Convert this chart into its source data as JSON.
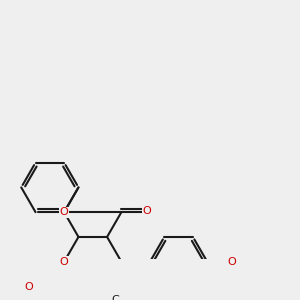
{
  "bg_color": "#efefef",
  "bond_color": "#1a1a1a",
  "bw": 1.5,
  "fs": 8.0,
  "fs_small": 7.0,
  "figsize": [
    3.0,
    3.0
  ],
  "dpi": 100,
  "xlim": [
    -1.5,
    8.5
  ],
  "ylim": [
    -2.5,
    6.5
  ]
}
